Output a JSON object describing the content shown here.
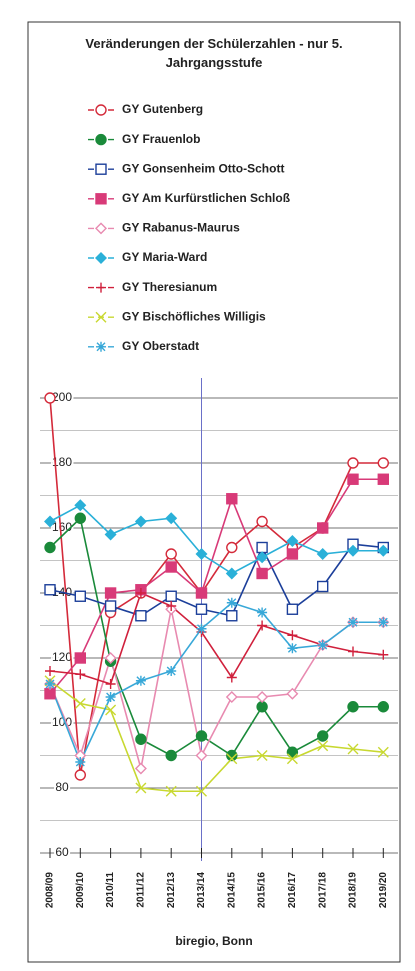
{
  "chart_data": {
    "type": "line",
    "title": "Veränderungen der Schülerzahlen - nur 5. Jahrgangsstufe",
    "x_label": "biregio, Bonn",
    "categories": [
      "2008/09",
      "2009/10",
      "2010/11",
      "2011/12",
      "2012/13",
      "2013/14",
      "2014/15",
      "2015/16",
      "2016/17",
      "2017/18",
      "2018/19",
      "2019/20"
    ],
    "ylim": [
      60,
      200
    ],
    "yticks": [
      60,
      80,
      100,
      120,
      140,
      160,
      180,
      200
    ],
    "grid": true,
    "series": [
      {
        "name": "GY Gutenberg",
        "color": "#d42a3a",
        "marker": "circle-open",
        "values": [
          200,
          84,
          134,
          140,
          152,
          140,
          154,
          162,
          154,
          160,
          180,
          180
        ]
      },
      {
        "name": "GY Frauenlob",
        "color": "#1a8a3a",
        "marker": "circle-filled",
        "values": [
          154,
          163,
          119,
          95,
          90,
          96,
          90,
          105,
          91,
          96,
          105,
          105
        ]
      },
      {
        "name": "GY Gonsenheim Otto-Schott",
        "color": "#1c3f9a",
        "marker": "square-open",
        "values": [
          141,
          139,
          136,
          133,
          139,
          135,
          133,
          154,
          135,
          142,
          155,
          154
        ]
      },
      {
        "name": "GY Am Kurfürstlichen Schloß",
        "color": "#d83a78",
        "marker": "square-filled",
        "values": [
          109,
          120,
          140,
          141,
          148,
          140,
          169,
          146,
          152,
          160,
          175,
          175
        ]
      },
      {
        "name": "GY Rabanus-Maurus",
        "color": "#e88ab0",
        "marker": "diamond-open",
        "values": [
          112,
          90,
          120,
          86,
          135,
          90,
          108,
          108,
          109,
          124,
          131,
          131
        ]
      },
      {
        "name": "GY Maria-Ward",
        "color": "#2ab0d8",
        "marker": "diamond-filled",
        "values": [
          162,
          167,
          158,
          162,
          163,
          152,
          146,
          151,
          156,
          152,
          153,
          153
        ]
      },
      {
        "name": "GY Theresianum",
        "color": "#d0203c",
        "marker": "plus",
        "values": [
          116,
          115,
          112,
          140,
          136,
          128,
          114,
          130,
          127,
          124,
          122,
          121
        ]
      },
      {
        "name": "GY Bischöfliches Willigis",
        "color": "#c8d830",
        "marker": "cross",
        "values": [
          113,
          106,
          104,
          80,
          79,
          79,
          89,
          90,
          89,
          93,
          92,
          91
        ]
      },
      {
        "name": "GY Oberstadt",
        "color": "#38a8d8",
        "marker": "star",
        "values": [
          112,
          88,
          108,
          113,
          116,
          129,
          137,
          134,
          123,
          124,
          131,
          131
        ]
      }
    ]
  }
}
